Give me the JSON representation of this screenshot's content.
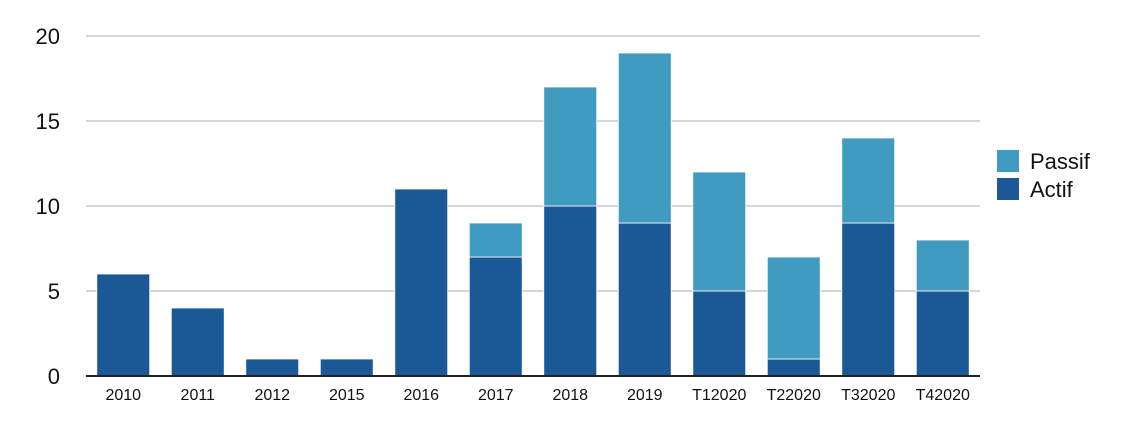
{
  "chart_data": {
    "type": "bar",
    "stacked": true,
    "title": "",
    "xlabel": "",
    "ylabel": "",
    "categories": [
      "2010",
      "2011",
      "2012",
      "2015",
      "2016",
      "2017",
      "2018",
      "2019",
      "T12020",
      "T22020",
      "T32020",
      "T42020"
    ],
    "series": [
      {
        "name": "Actif",
        "color": "#1a5896",
        "values": [
          6,
          4,
          1,
          1,
          11,
          7,
          10,
          9,
          5,
          1,
          9,
          5
        ]
      },
      {
        "name": "Passif",
        "color": "#3f9bbf",
        "values": [
          0,
          0,
          0,
          0,
          0,
          2,
          7,
          10,
          7,
          6,
          5,
          3
        ]
      }
    ],
    "ylim": [
      0,
      20
    ],
    "yticks": [
      0,
      5,
      10,
      15,
      20
    ],
    "grid": true,
    "legend": {
      "position": "right",
      "order": [
        "Passif",
        "Actif"
      ]
    }
  }
}
